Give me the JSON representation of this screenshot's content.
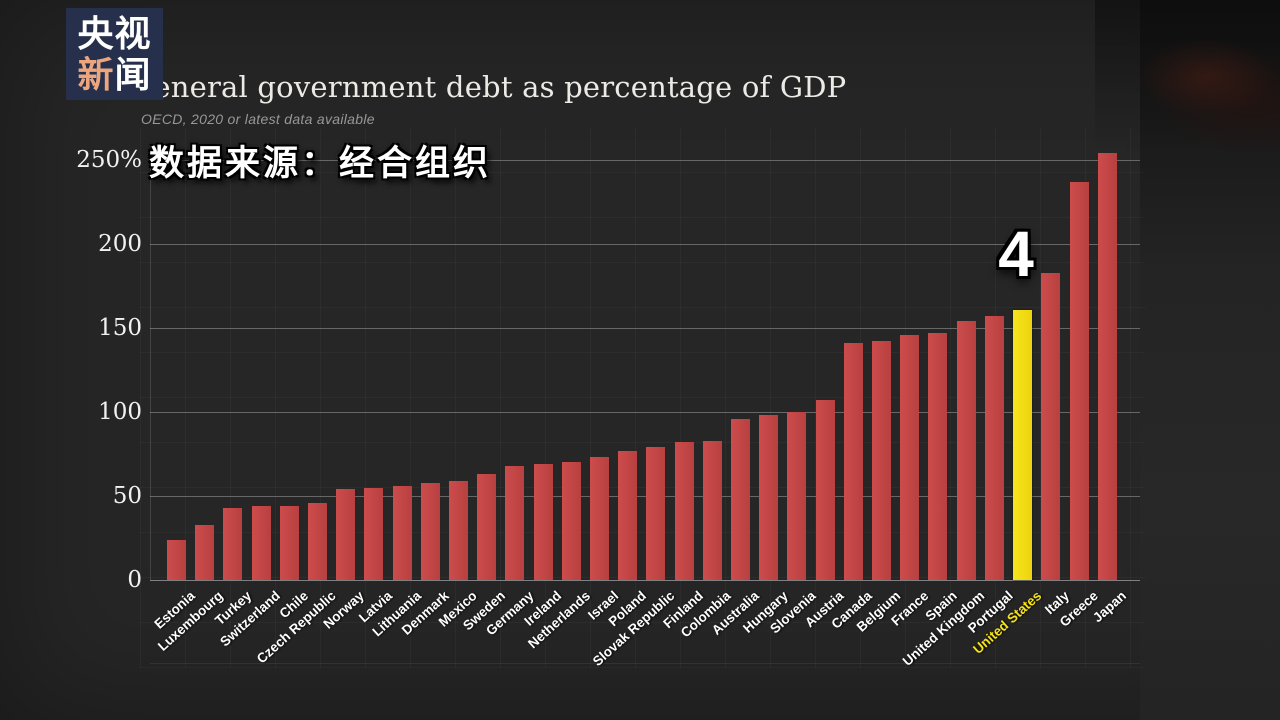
{
  "broadcaster": {
    "logo_line1": "央视",
    "logo_line2_char1": "新",
    "logo_line2_char2": "闻"
  },
  "chart_data": {
    "type": "bar",
    "title": "General government debt as percentage of GDP",
    "subtitle": "OECD, 2020 or latest data available",
    "source_overlay": "数据来源：经合组织",
    "annotation": {
      "label": "4",
      "target": "United States"
    },
    "ylim": [
      0,
      250
    ],
    "y_ticks": [
      {
        "label": "250%",
        "value": 250
      },
      {
        "label": "200",
        "value": 200
      },
      {
        "label": "150",
        "value": 150
      },
      {
        "label": "100",
        "value": 100
      },
      {
        "label": "50",
        "value": 50
      },
      {
        "label": "0",
        "value": 0
      }
    ],
    "grid": true,
    "legend": false,
    "categories": [
      "Estonia",
      "Luxembourg",
      "Turkey",
      "Switzerland",
      "Chile",
      "Czech Republic",
      "Norway",
      "Latvia",
      "Lithuania",
      "Denmark",
      "Mexico",
      "Sweden",
      "Germany",
      "Ireland",
      "Netherlands",
      "Israel",
      "Poland",
      "Slovak Republic",
      "Finland",
      "Colombia",
      "Australia",
      "Hungary",
      "Slovenia",
      "Austria",
      "Canada",
      "Belgium",
      "France",
      "Spain",
      "United Kingdom",
      "Portugal",
      "United States",
      "Italy",
      "Greece",
      "Japan"
    ],
    "values": [
      24,
      33,
      43,
      44,
      44,
      46,
      54,
      55,
      56,
      58,
      59,
      63,
      68,
      69,
      70,
      73,
      77,
      79,
      82,
      83,
      96,
      98,
      100,
      107,
      141,
      142,
      146,
      147,
      154,
      157,
      161,
      183,
      237,
      254
    ],
    "highlight": {
      "category": "United States",
      "bar_color": "#f6e318",
      "label_color": "#f6e318"
    },
    "colors": {
      "bar": "#c64747",
      "axis_label": "#f1f1f1",
      "category_label": "#ffffff",
      "background": "#262626"
    }
  }
}
